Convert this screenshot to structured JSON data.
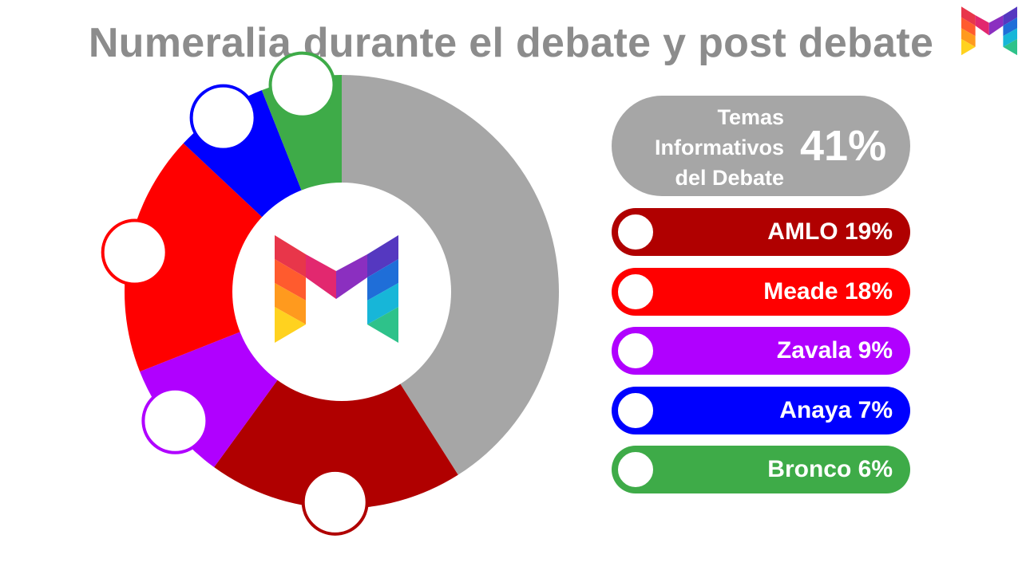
{
  "title": "Numeralia durante el debate y post debate",
  "logo": {
    "icon": "m-logo-icon"
  },
  "summary": {
    "label": "Temas\nInformativos\ndel Debate",
    "value": "41%",
    "color": "#a6a6a6"
  },
  "legend": [
    {
      "label": "AMLO 19%",
      "color": "#b00000"
    },
    {
      "label": "Meade 18%",
      "color": "#ff0000"
    },
    {
      "label": "Zavala 9%",
      "color": "#b000ff"
    },
    {
      "label": "Anaya 7%",
      "color": "#0000ff"
    },
    {
      "label": "Bronco 6%",
      "color": "#3eab48"
    }
  ],
  "chart_data": {
    "type": "pie",
    "title": "Numeralia durante el debate y post debate",
    "categories": [
      "Temas Informativos del Debate",
      "AMLO",
      "Zavala",
      "Meade",
      "Anaya",
      "Bronco"
    ],
    "values": [
      41,
      19,
      9,
      18,
      7,
      6
    ],
    "colors": [
      "#a6a6a6",
      "#b00000",
      "#b000ff",
      "#ff0000",
      "#0000ff",
      "#3eab48"
    ],
    "unit": "%",
    "donut": true,
    "legend_position": "right"
  }
}
